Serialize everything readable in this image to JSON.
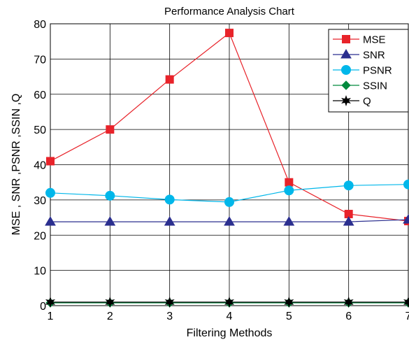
{
  "chart_data": {
    "type": "line",
    "title": "Performance Analysis Chart",
    "xlabel": "Filtering Methods",
    "ylabel": "MSE , SNR ,PSNR ,SSIN ,Q",
    "x": [
      1,
      2,
      3,
      4,
      5,
      6,
      7
    ],
    "xlim": [
      1,
      7
    ],
    "ylim": [
      0,
      80
    ],
    "x_ticks": [
      1,
      2,
      3,
      4,
      5,
      6,
      7
    ],
    "y_ticks": [
      0,
      10,
      20,
      30,
      40,
      50,
      60,
      70,
      80
    ],
    "grid": true,
    "legend_position": "top-right",
    "series": [
      {
        "name": "MSE",
        "values": [
          41,
          50,
          64.2,
          77.4,
          35,
          26,
          24
        ],
        "color": "#e8232a",
        "marker": "square"
      },
      {
        "name": "SNR",
        "values": [
          23.8,
          23.8,
          23.8,
          23.8,
          23.8,
          23.8,
          24.4
        ],
        "color": "#2b2f8f",
        "marker": "triangle"
      },
      {
        "name": "PSNR",
        "values": [
          32,
          31.2,
          30.1,
          29.4,
          32.7,
          34.1,
          34.4
        ],
        "color": "#00b7ea",
        "marker": "circle"
      },
      {
        "name": "SSIN",
        "values": [
          0.8,
          0.8,
          0.8,
          0.8,
          0.8,
          0.8,
          0.8
        ],
        "color": "#008a3e",
        "marker": "diamond"
      },
      {
        "name": "Q",
        "values": [
          1,
          1,
          1,
          1,
          1,
          1,
          1
        ],
        "color": "#000000",
        "marker": "star"
      }
    ]
  }
}
